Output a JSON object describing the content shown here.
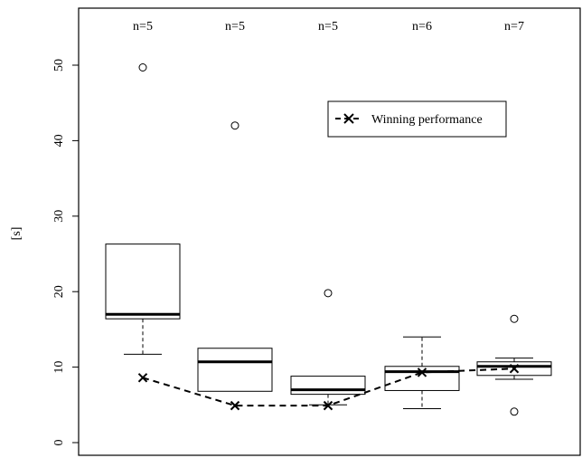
{
  "chart_data": {
    "type": "boxplot",
    "ylabel": "[s]",
    "ylim": [
      0,
      55
    ],
    "yticks": [
      0,
      10,
      20,
      30,
      40,
      50
    ],
    "grid": false,
    "legend": {
      "position": "top-right",
      "label": "Winning performance"
    },
    "boxes": [
      {
        "n_label": "n=5",
        "whisker_low": 11.7,
        "q1": 16.4,
        "median": 17.0,
        "q3": 26.3,
        "whisker_high": 26.3,
        "outliers": [
          49.7
        ]
      },
      {
        "n_label": "n=5",
        "whisker_low": 6.8,
        "q1": 6.8,
        "median": 10.7,
        "q3": 12.5,
        "whisker_high": 12.5,
        "outliers": [
          42.0
        ]
      },
      {
        "n_label": "n=5",
        "whisker_low": 5.0,
        "q1": 6.4,
        "median": 7.0,
        "q3": 8.8,
        "whisker_high": 8.8,
        "outliers": [
          19.8
        ]
      },
      {
        "n_label": "n=6",
        "whisker_low": 4.5,
        "q1": 6.9,
        "median": 9.4,
        "q3": 10.1,
        "whisker_high": 14.0,
        "outliers": []
      },
      {
        "n_label": "n=7",
        "whisker_low": 8.4,
        "q1": 8.9,
        "median": 10.1,
        "q3": 10.7,
        "whisker_high": 11.2,
        "outliers": [
          16.4,
          4.1
        ]
      }
    ],
    "winning_performance": [
      8.6,
      4.9,
      4.9,
      9.3,
      9.8
    ]
  }
}
